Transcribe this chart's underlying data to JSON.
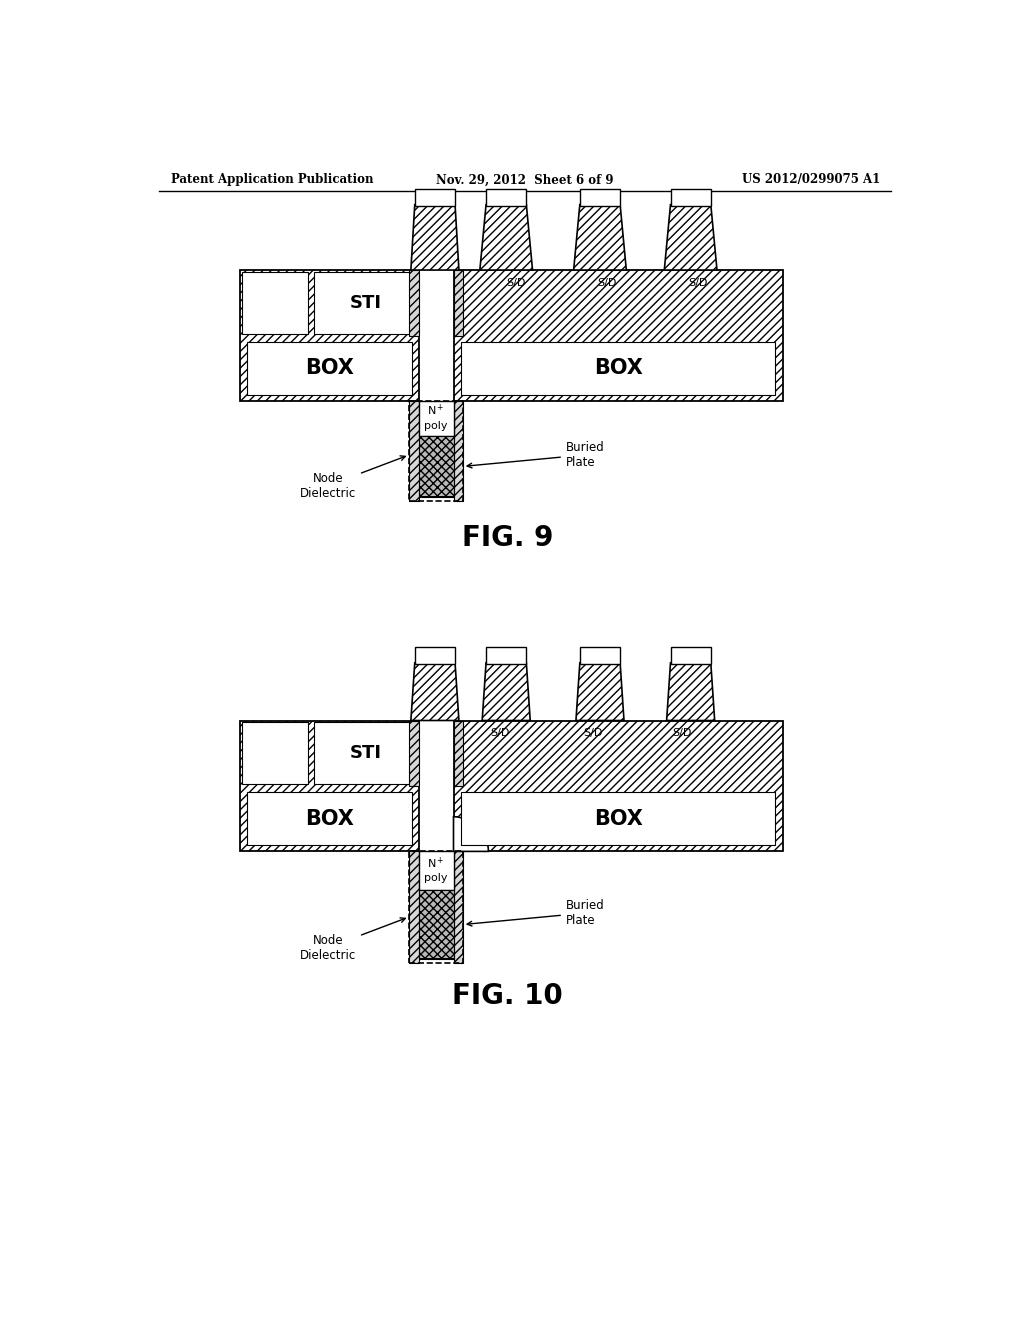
{
  "header_left": "Patent Application Publication",
  "header_mid": "Nov. 29, 2012  Sheet 6 of 9",
  "header_right": "US 2012/0299075 A1",
  "fig9_label": "FIG. 9",
  "fig10_label": "FIG. 10",
  "bg_color": "#ffffff"
}
